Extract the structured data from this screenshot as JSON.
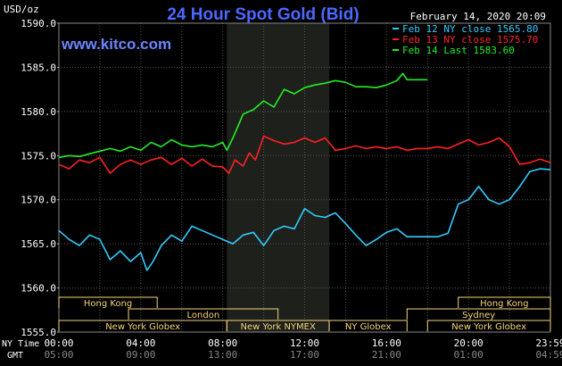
{
  "chart_data": {
    "type": "line",
    "title": "24 Hour Spot Gold (Bid)",
    "unit_label": "USD/oz",
    "website": "www.kitco.com",
    "timestamp": "February 14, 2020 20:09",
    "ylim": [
      1555,
      1590
    ],
    "y_ticks": [
      "1590.0",
      "1585.0",
      "1580.0",
      "1575.0",
      "1570.0",
      "1565.0",
      "1560.0",
      "1555.0"
    ],
    "ny_time_label": "NY Time",
    "gmt_label": "GMT",
    "x_ticks_ny": [
      "00:00",
      "04:00",
      "08:00",
      "12:00",
      "16:00",
      "20:00",
      "23:59"
    ],
    "x_ticks_gmt": [
      "05:00",
      "09:00",
      "13:00",
      "17:00",
      "21:00",
      "01:00",
      "04:59"
    ],
    "legend": [
      {
        "name": "Feb 12 NY close 1565.80",
        "color": "#33ccff"
      },
      {
        "name": "Feb 13 NY close 1575.70",
        "color": "#ff2020"
      },
      {
        "name": "Feb 14 Last 1583.60",
        "color": "#22ee22"
      }
    ],
    "highlight_range_hours": [
      8.2,
      13.2
    ],
    "sessions": [
      {
        "name": "Hong Kong",
        "row": 0,
        "start_h": 0,
        "end_h": 4.8
      },
      {
        "name": "Hong Kong",
        "row": 0,
        "start_h": 19.5,
        "end_h": 24
      },
      {
        "name": "London",
        "row": 1,
        "start_h": 3.4,
        "end_h": 10.7
      },
      {
        "name": "Sydney",
        "row": 1,
        "start_h": 17.0,
        "end_h": 24
      },
      {
        "name": "New York Globex",
        "row": 2,
        "start_h": 0,
        "end_h": 8.2
      },
      {
        "name": "New York NYMEX",
        "row": 2,
        "start_h": 8.2,
        "end_h": 13.2
      },
      {
        "name": "NY Globex",
        "row": 2,
        "start_h": 13.2,
        "end_h": 17.0
      },
      {
        "name": "New York Globex",
        "row": 2,
        "start_h": 18.0,
        "end_h": 24
      }
    ],
    "series": [
      {
        "name": "Feb 12 NY close 1565.80",
        "color": "#33ccff",
        "x": [
          0,
          0.5,
          1,
          1.5,
          2,
          2.5,
          3,
          3.5,
          4,
          4.3,
          4.6,
          5,
          5.5,
          6,
          6.5,
          7,
          7.5,
          8,
          8.5,
          9,
          9.5,
          10,
          10.5,
          11,
          11.5,
          12,
          12.5,
          13,
          13.5,
          14,
          14.5,
          15,
          15.5,
          16,
          16.5,
          17,
          17.5,
          18,
          18.5,
          19,
          19.5,
          20,
          20.5,
          21,
          21.5,
          22,
          22.5,
          23,
          23.5,
          24
        ],
        "y": [
          1566.5,
          1565.5,
          1564.8,
          1566.0,
          1565.5,
          1563.2,
          1564.2,
          1563.0,
          1564.0,
          1562.0,
          1563.0,
          1564.8,
          1566.0,
          1565.3,
          1567.0,
          1566.5,
          1566.0,
          1565.5,
          1565.0,
          1566.0,
          1566.3,
          1564.8,
          1566.5,
          1567.0,
          1566.7,
          1569.0,
          1568.2,
          1568.0,
          1568.5,
          1567.3,
          1566.0,
          1564.8,
          1565.5,
          1566.3,
          1566.7,
          1565.8,
          1565.8,
          1565.8,
          1565.8,
          1566.2,
          1569.5,
          1570.0,
          1571.5,
          1570.0,
          1569.5,
          1570.0,
          1571.5,
          1573.2,
          1573.5,
          1573.4
        ]
      },
      {
        "name": "Feb 13 NY close 1575.70",
        "color": "#ff2020",
        "x": [
          0,
          0.5,
          1,
          1.5,
          2,
          2.5,
          3,
          3.5,
          4,
          4.5,
          5,
          5.5,
          6,
          6.5,
          7,
          7.5,
          8,
          8.3,
          8.6,
          9,
          9.3,
          9.6,
          10,
          10.5,
          11,
          11.5,
          12,
          12.5,
          13,
          13.5,
          14,
          14.5,
          15,
          15.5,
          16,
          16.5,
          17,
          17.5,
          18,
          18.5,
          19,
          19.5,
          20,
          20.5,
          21,
          21.5,
          22,
          22.5,
          23,
          23.5,
          24
        ],
        "y": [
          1574.0,
          1573.5,
          1574.5,
          1574.2,
          1574.8,
          1573.0,
          1574.0,
          1574.5,
          1574.0,
          1574.5,
          1574.8,
          1574.0,
          1574.7,
          1573.8,
          1574.6,
          1573.8,
          1573.7,
          1573.0,
          1574.5,
          1573.8,
          1575.3,
          1574.5,
          1577.2,
          1576.7,
          1576.3,
          1576.5,
          1577.0,
          1576.5,
          1577.0,
          1575.6,
          1575.8,
          1576.1,
          1575.8,
          1576.0,
          1575.8,
          1576.0,
          1575.6,
          1575.8,
          1575.8,
          1576.0,
          1575.8,
          1576.3,
          1576.8,
          1576.2,
          1576.5,
          1577.0,
          1576.0,
          1574.0,
          1574.2,
          1574.6,
          1574.2
        ]
      },
      {
        "name": "Feb 14 Last 1583.60",
        "color": "#22ee22",
        "x": [
          0,
          0.5,
          1,
          1.5,
          2,
          2.5,
          3,
          3.5,
          4,
          4.5,
          5,
          5.5,
          6,
          6.5,
          7,
          7.5,
          8,
          8.2,
          8.5,
          9,
          9.5,
          10,
          10.5,
          11,
          11.5,
          12,
          12.5,
          13,
          13.5,
          14,
          14.5,
          15,
          15.5,
          16,
          16.5,
          16.8,
          17,
          17.5,
          18
        ],
        "y": [
          1574.8,
          1575.0,
          1574.9,
          1575.2,
          1575.5,
          1575.8,
          1575.5,
          1576.0,
          1575.6,
          1576.5,
          1576.0,
          1576.8,
          1576.2,
          1576.0,
          1576.2,
          1576.0,
          1576.5,
          1575.6,
          1577.0,
          1579.7,
          1580.2,
          1581.2,
          1580.5,
          1582.5,
          1582.0,
          1582.7,
          1583.0,
          1583.2,
          1583.5,
          1583.3,
          1582.8,
          1582.8,
          1582.7,
          1583.0,
          1583.5,
          1584.3,
          1583.6,
          1583.6,
          1583.6
        ]
      }
    ]
  }
}
